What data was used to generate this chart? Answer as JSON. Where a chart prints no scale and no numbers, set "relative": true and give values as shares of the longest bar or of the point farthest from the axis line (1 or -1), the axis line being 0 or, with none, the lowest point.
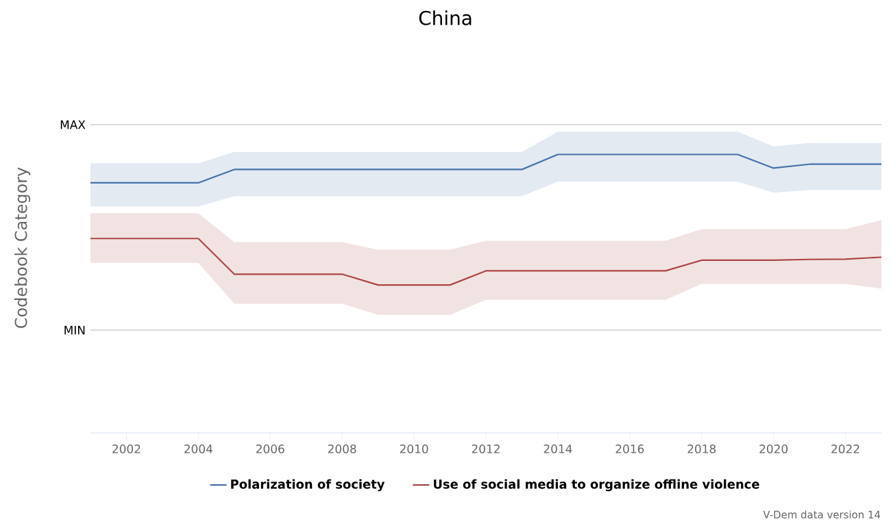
{
  "chart_data": {
    "type": "line",
    "title": "China",
    "ylabel": "Codebook Category",
    "relative": true,
    "x": [
      2001,
      2002,
      2003,
      2004,
      2005,
      2006,
      2007,
      2008,
      2009,
      2010,
      2011,
      2012,
      2013,
      2014,
      2015,
      2016,
      2017,
      2018,
      2019,
      2020,
      2021,
      2022,
      2023
    ],
    "series": [
      {
        "name": "Polarization of society",
        "color": "#4572a7",
        "values": [
          0.898,
          0.898,
          0.898,
          0.898,
          0.946,
          0.946,
          0.946,
          0.946,
          0.946,
          0.946,
          0.946,
          0.946,
          0.946,
          1,
          1,
          1,
          1,
          1,
          1,
          0.951,
          0.965,
          0.965,
          0.965
        ],
        "lower": [
          0.813,
          0.813,
          0.813,
          0.813,
          0.85,
          0.85,
          0.85,
          0.85,
          0.85,
          0.85,
          0.85,
          0.85,
          0.85,
          0.902,
          0.902,
          0.902,
          0.902,
          0.902,
          0.902,
          0.863,
          0.872,
          0.872,
          0.872
        ],
        "upper": [
          0.968,
          0.968,
          0.968,
          0.968,
          1.009,
          1.009,
          1.009,
          1.009,
          1.009,
          1.009,
          1.009,
          1.009,
          1.009,
          1.082,
          1.082,
          1.082,
          1.082,
          1.082,
          1.082,
          1.029,
          1.041,
          1.041,
          1.041
        ]
      },
      {
        "name": "Use of social media to organize offline violence",
        "color": "#aa4643",
        "values": [
          0.698,
          0.698,
          0.698,
          0.698,
          0.57,
          0.57,
          0.57,
          0.57,
          0.531,
          0.531,
          0.531,
          0.582,
          0.582,
          0.582,
          0.582,
          0.582,
          0.582,
          0.62,
          0.62,
          0.62,
          0.623,
          0.624,
          0.631
        ],
        "lower": [
          0.611,
          0.611,
          0.611,
          0.611,
          0.464,
          0.464,
          0.464,
          0.464,
          0.424,
          0.424,
          0.424,
          0.478,
          0.478,
          0.478,
          0.478,
          0.478,
          0.478,
          0.535,
          0.535,
          0.535,
          0.535,
          0.535,
          0.518
        ],
        "upper": [
          0.789,
          0.789,
          0.789,
          0.789,
          0.685,
          0.685,
          0.685,
          0.685,
          0.658,
          0.658,
          0.658,
          0.69,
          0.69,
          0.69,
          0.69,
          0.69,
          0.69,
          0.732,
          0.732,
          0.732,
          0.732,
          0.732,
          0.764
        ]
      }
    ],
    "xlim": [
      2001,
      2023
    ],
    "xticks": [
      2002,
      2004,
      2006,
      2008,
      2010,
      2012,
      2014,
      2016,
      2018,
      2020,
      2022
    ],
    "ref_lines": [
      {
        "axis": "y",
        "value": 1.107,
        "label": "MAX"
      },
      {
        "axis": "y",
        "value": 0.369,
        "label": "MIN"
      }
    ],
    "legend": "bottom",
    "marker": "none",
    "line_style": "solid",
    "annotations": [
      "V-Dem data version 14"
    ]
  }
}
